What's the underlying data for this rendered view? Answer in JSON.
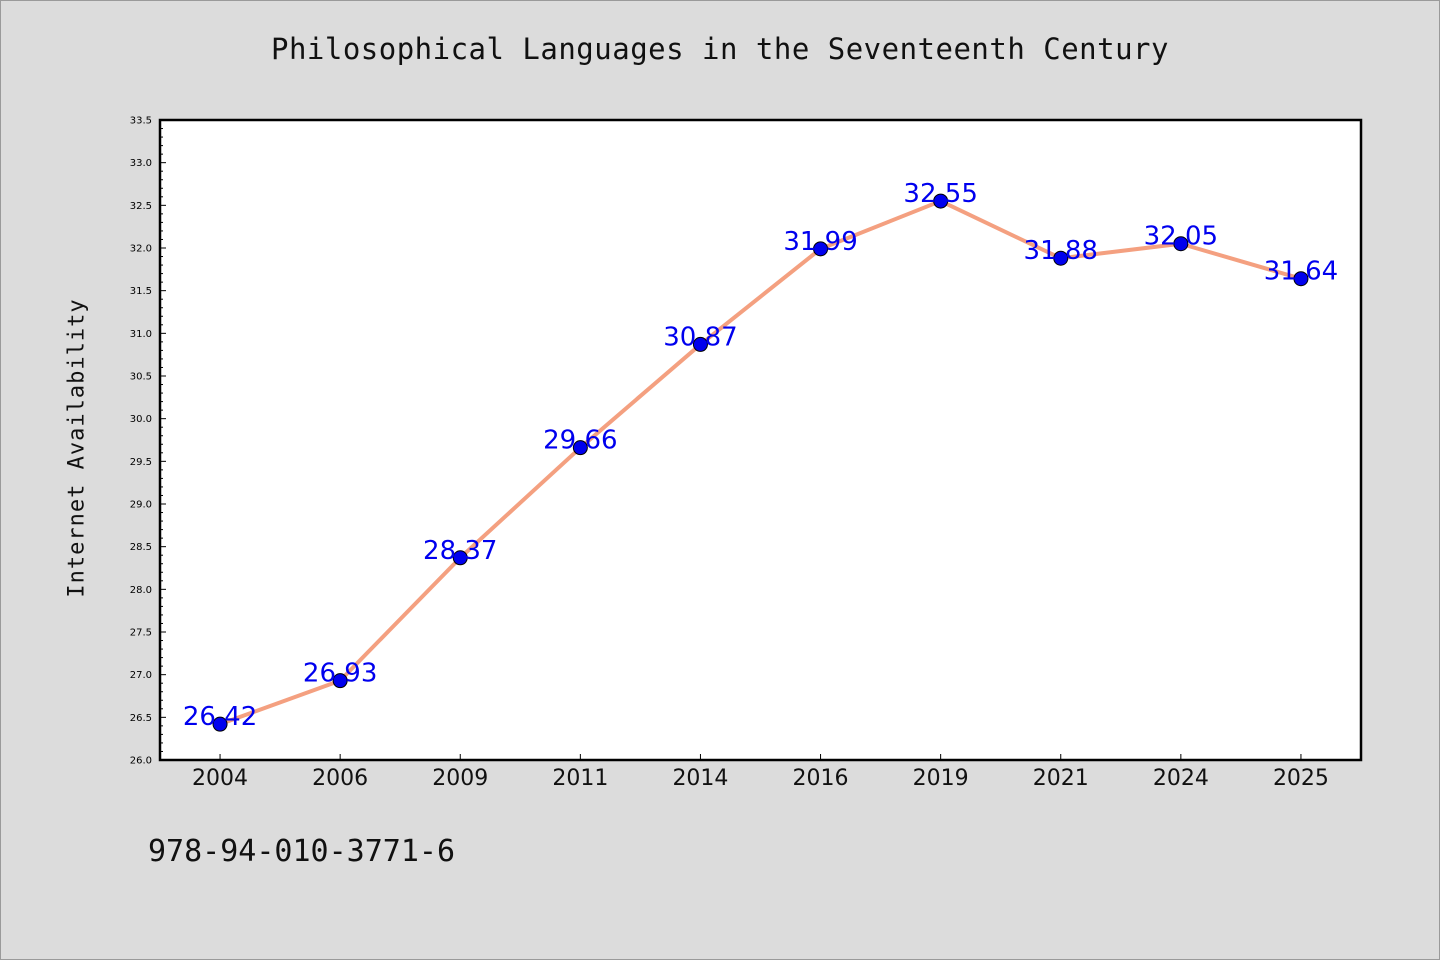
{
  "chart_data": {
    "type": "line",
    "title": "Philosophical Languages in the Seventeenth Century",
    "ylabel": "Internet Availability",
    "xlabel": "",
    "categories": [
      "2004",
      "2006",
      "2009",
      "2011",
      "2014",
      "2016",
      "2019",
      "2021",
      "2024",
      "2025"
    ],
    "series": [
      {
        "values": [
          26.42,
          26.93,
          28.37,
          29.66,
          30.87,
          31.99,
          32.55,
          31.88,
          32.05,
          31.64
        ],
        "labels": [
          "26.42",
          "26.93",
          "28.37",
          "29.66",
          "30.87",
          "31.99",
          "32.55",
          "31.88",
          "32.05",
          "31.64"
        ]
      }
    ],
    "ylim": [
      26.0,
      33.5
    ],
    "yticks": [
      "26.0",
      "26.5",
      "27.0",
      "27.5",
      "28.0",
      "28.5",
      "29.0",
      "29.5",
      "30.0",
      "30.5",
      "31.0",
      "31.5",
      "32.0",
      "32.5",
      "33.0",
      "33.5"
    ],
    "grid": false,
    "line_color": "#f4a080",
    "marker_color": "#0000ee",
    "label_color": "#0000ee"
  },
  "footer": {
    "isbn": "978-94-010-3771-6"
  }
}
